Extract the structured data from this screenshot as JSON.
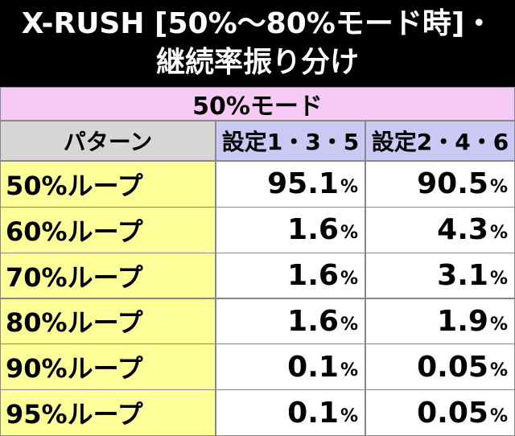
{
  "header": {
    "title": [
      "X-RUSH [50%〜80%モード時]・",
      "継続率振り分け"
    ]
  },
  "table": {
    "caption": "50%モード",
    "columns": [
      "パターン",
      "設定1・3・5",
      "設定2・4・6"
    ],
    "rows": [
      [
        "50%ループ",
        "95.1%",
        "90.5%"
      ],
      [
        "60%ループ",
        "1.6%",
        "4.3%"
      ],
      [
        "70%ループ",
        "1.6%",
        "3.1%"
      ],
      [
        "80%ループ",
        "1.6%",
        "1.9%"
      ],
      [
        "90%ループ",
        "0.1%",
        "0.05%"
      ],
      [
        "95%ループ",
        "0.1%",
        "0.05%"
      ]
    ]
  }
}
